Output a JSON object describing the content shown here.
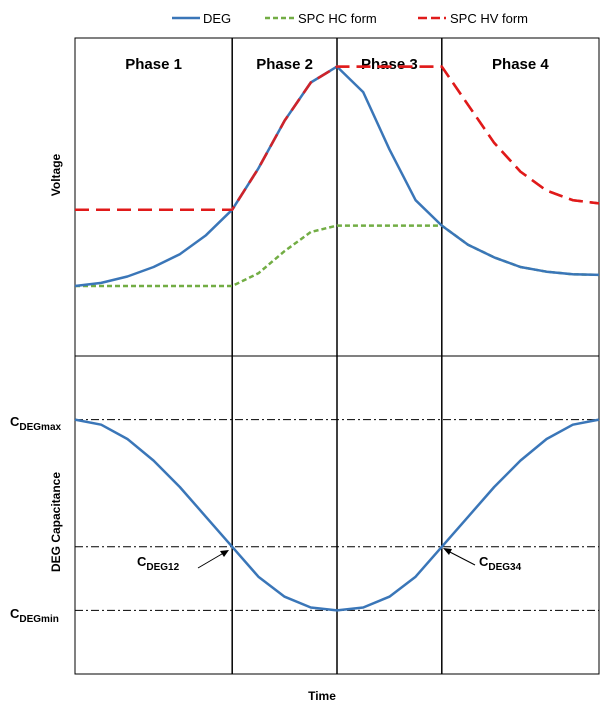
{
  "chart_data": {
    "type": "line",
    "xlabel": "Time",
    "legend": {
      "placement": "top",
      "entries": [
        {
          "name": "DEG",
          "color": "#3a76b8",
          "dash": "solid"
        },
        {
          "name": "SPC HC form",
          "color": "#72ad44",
          "dash": "dashed"
        },
        {
          "name": "SPC HV form",
          "color": "#e01b1b",
          "dash": "long-dashed"
        }
      ]
    },
    "phases": [
      "Phase 1",
      "Phase 2",
      "Phase 3",
      "Phase 4"
    ],
    "phase_boundaries": [
      0,
      0.3,
      0.5,
      0.7,
      1.0
    ],
    "panels": [
      {
        "ylabel": "Voltage",
        "ylim": [
          0,
          1
        ],
        "series": [
          {
            "name": "DEG",
            "color": "#3a76b8",
            "x": [
              0,
              0.05,
              0.1,
              0.15,
              0.2,
              0.25,
              0.3,
              0.35,
              0.4,
              0.45,
              0.5,
              0.55,
              0.6,
              0.65,
              0.7,
              0.75,
              0.8,
              0.85,
              0.9,
              0.95,
              1.0
            ],
            "y": [
              0.22,
              0.23,
              0.25,
              0.28,
              0.32,
              0.38,
              0.46,
              0.59,
              0.74,
              0.86,
              0.91,
              0.83,
              0.65,
              0.49,
              0.41,
              0.35,
              0.31,
              0.28,
              0.265,
              0.257,
              0.255
            ]
          },
          {
            "name": "SPC HC form",
            "color": "#72ad44",
            "x": [
              0,
              0.3,
              0.35,
              0.4,
              0.45,
              0.5,
              0.7,
              0.75,
              0.8,
              0.85,
              0.9,
              0.95,
              1.0
            ],
            "y": [
              0.22,
              0.22,
              0.26,
              0.33,
              0.39,
              0.41,
              0.41,
              0.35,
              0.31,
              0.28,
              0.265,
              0.257,
              0.255
            ]
          },
          {
            "name": "SPC HV form",
            "color": "#e01b1b",
            "x": [
              0,
              0.3,
              0.35,
              0.4,
              0.45,
              0.5,
              0.7,
              0.75,
              0.8,
              0.85,
              0.9,
              0.95,
              1.0
            ],
            "y": [
              0.46,
              0.46,
              0.59,
              0.74,
              0.86,
              0.91,
              0.91,
              0.79,
              0.67,
              0.58,
              0.52,
              0.49,
              0.48
            ]
          }
        ]
      },
      {
        "ylabel": "DEG Capacitance",
        "ylim": [
          0,
          1
        ],
        "reference_lines": [
          {
            "name": "C_DEGmax",
            "main": "C",
            "sub": "DEGmax",
            "y": 0.8
          },
          {
            "name": "C_DEG12_34",
            "y": 0.4
          },
          {
            "name": "C_DEGmin",
            "main": "C",
            "sub": "DEGmin",
            "y": 0.2
          }
        ],
        "annotations": [
          {
            "main": "C",
            "sub": "DEG12",
            "x": 0.3,
            "y": 0.4
          },
          {
            "main": "C",
            "sub": "DEG34",
            "x": 0.7,
            "y": 0.4
          }
        ],
        "series": [
          {
            "name": "DEG",
            "color": "#3a76b8",
            "x": [
              0,
              0.05,
              0.1,
              0.15,
              0.2,
              0.25,
              0.3,
              0.35,
              0.4,
              0.45,
              0.5,
              0.55,
              0.6,
              0.65,
              0.7,
              0.75,
              0.8,
              0.85,
              0.9,
              0.95,
              1.0
            ],
            "y": [
              0.8,
              0.784,
              0.739,
              0.671,
              0.588,
              0.494,
              0.4,
              0.306,
              0.243,
              0.209,
              0.2,
              0.209,
              0.243,
              0.306,
              0.4,
              0.494,
              0.588,
              0.671,
              0.739,
              0.784,
              0.8
            ]
          }
        ]
      }
    ]
  }
}
